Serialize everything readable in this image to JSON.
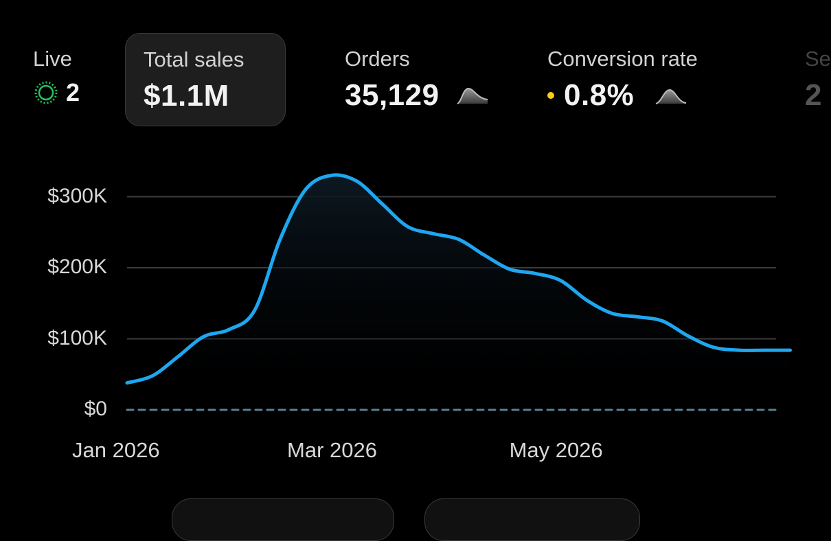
{
  "metrics": {
    "live": {
      "label": "Live",
      "value": "2",
      "icon": "live-pulse-icon",
      "color": "#22c55e"
    },
    "total_sales": {
      "label": "Total sales",
      "value": "$1.1M"
    },
    "orders": {
      "label": "Orders",
      "value": "35,129",
      "icon": "sparkline-icon"
    },
    "conversion_rate": {
      "label": "Conversion rate",
      "value": "0.8%",
      "icon": "sparkline-icon",
      "dot_color": "#facc15"
    },
    "partial": {
      "label": "Se",
      "value": "2"
    }
  },
  "colors": {
    "background": "#000000",
    "line": "#1ea7f0",
    "grid": "#3c3c3c",
    "baseline": "#5a7f91"
  },
  "chart_data": {
    "type": "line",
    "x": [
      "2026-01-01",
      "2026-01-08",
      "2026-01-15",
      "2026-01-22",
      "2026-01-29",
      "2026-02-05",
      "2026-02-12",
      "2026-02-19",
      "2026-02-26",
      "2026-03-05",
      "2026-03-12",
      "2026-03-19",
      "2026-03-26",
      "2026-04-02",
      "2026-04-09",
      "2026-04-16",
      "2026-04-23",
      "2026-04-30",
      "2026-05-07",
      "2026-05-14",
      "2026-05-21",
      "2026-05-28",
      "2026-06-04",
      "2026-06-11",
      "2026-06-18",
      "2026-06-25",
      "2026-07-02"
    ],
    "series": [
      {
        "values": [
          38000,
          48000,
          75000,
          103000,
          113000,
          140000,
          240000,
          310000,
          330000,
          322000,
          290000,
          258000,
          248000,
          240000,
          218000,
          198000,
          192000,
          182000,
          155000,
          136000,
          131000,
          125000,
          104000,
          88000,
          84000,
          84000,
          84000
        ]
      }
    ],
    "yticks": [
      "$0",
      "$100K",
      "$200K",
      "$300K"
    ],
    "ytick_values": [
      0,
      100000,
      200000,
      300000
    ],
    "xticks": [
      "Jan 2026",
      "Mar 2026",
      "May 2026"
    ],
    "ylim": [
      0,
      330000
    ],
    "grid": true,
    "xlabel": "",
    "ylabel": ""
  },
  "bottom_pills": [
    {},
    {}
  ]
}
